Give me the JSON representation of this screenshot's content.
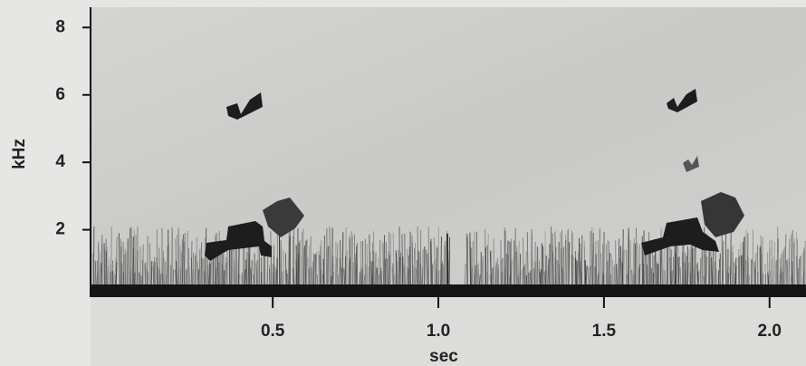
{
  "chart_data": {
    "type": "spectrogram",
    "x_label": "sec",
    "y_label": "kHz",
    "xlim": [
      -0.05,
      2.11
    ],
    "ylim": [
      0,
      8.6
    ],
    "xticks": [
      0.5,
      {
        "value": 1.0,
        "label": "1.0"
      },
      1.5,
      {
        "value": 2.0,
        "label": "2.0"
      }
    ],
    "yticks": [
      2,
      4,
      6,
      8
    ]
  }
}
